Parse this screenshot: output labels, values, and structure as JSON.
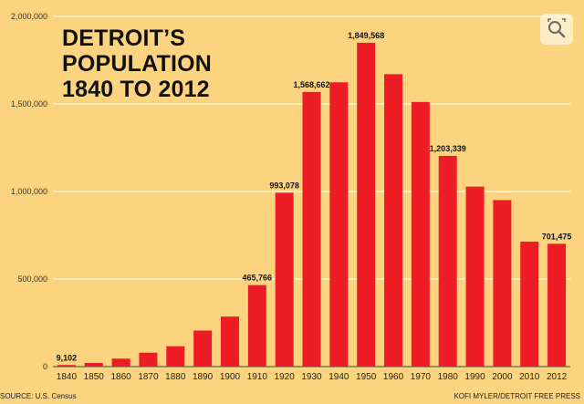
{
  "title_lines": [
    "DETROIT’S",
    "POPULATION",
    "1840 TO 2012"
  ],
  "source": "SOURCE: U.S. Census",
  "credit": "KOFI MYLER/DETROIT FREE PRESS",
  "zoom_icon": "zoom-icon",
  "colors": {
    "background": "#fcd47f",
    "bar": "#ee1c25",
    "text": "#111111",
    "grid": "#ffffff"
  },
  "chart_data": {
    "type": "bar",
    "title": "DETROIT’S POPULATION 1840 TO 2012",
    "xlabel": "",
    "ylabel": "",
    "ylim": [
      0,
      2000000
    ],
    "y_ticks": [
      0,
      500000,
      1000000,
      1500000,
      2000000
    ],
    "y_tick_labels": [
      "0",
      "500,000",
      "1,000,000",
      "1,500,000",
      "2,000,000"
    ],
    "categories": [
      "1840",
      "1850",
      "1860",
      "1870",
      "1880",
      "1890",
      "1900",
      "1910",
      "1920",
      "1930",
      "1940",
      "1950",
      "1960",
      "1970",
      "1980",
      "1990",
      "2000",
      "2010",
      "2012"
    ],
    "values": [
      9102,
      21019,
      45619,
      79577,
      116340,
      205876,
      285704,
      465766,
      993078,
      1568662,
      1623452,
      1849568,
      1670144,
      1511482,
      1203339,
      1027974,
      951270,
      713777,
      701475
    ],
    "data_labels": [
      {
        "category": "1840",
        "label": "9,102"
      },
      {
        "category": "1910",
        "label": "465,766"
      },
      {
        "category": "1920",
        "label": "993,078"
      },
      {
        "category": "1930",
        "label": "1,568,662"
      },
      {
        "category": "1950",
        "label": "1,849,568"
      },
      {
        "category": "1980",
        "label": "1,203,339"
      },
      {
        "category": "2012",
        "label": "701,475"
      }
    ],
    "grid": true
  }
}
